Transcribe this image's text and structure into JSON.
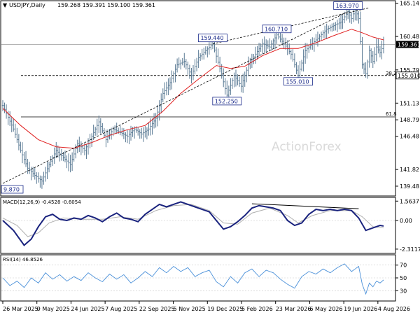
{
  "header": {
    "symbol_label": "USDJPY,Daily",
    "ohlc_text": "159.268 159.391 159.100 159.361"
  },
  "watermark": "ActionForex",
  "colors": {
    "price_bars": "#5a7a94",
    "moving_average": "#e02020",
    "trendline": "#000000",
    "macd_line": "#1a237e",
    "signal_line": "#b0b0b0",
    "rsi_line": "#4a90d9",
    "label_box": "#1a2a8a",
    "price_box": "#000000"
  },
  "chart_data": [
    {
      "type": "candlestick",
      "panel": "main",
      "title": "USDJPY,Daily",
      "ylim": [
        138.2,
        165.4
      ],
      "x_ticks": [
        "26 Mar 2025",
        "9 May 2025",
        "24 Jun 2025",
        "7 Aug 2025",
        "22 Sep 2025",
        "5 Nov 2025",
        "19 Dec 2025",
        "5 Feb 2026",
        "23 Mar 2026",
        "6 May 2026",
        "19 Jun 2026",
        "4 Aug 2026"
      ],
      "y_ticks": [
        165.14,
        160.48,
        155.79,
        151.13,
        148.79,
        146.48,
        141.82,
        139.48
      ],
      "close_path": [
        {
          "x": 0,
          "y": 150.8
        },
        {
          "x": 6,
          "y": 147.5
        },
        {
          "x": 10,
          "y": 144.5
        },
        {
          "x": 14,
          "y": 142.0
        },
        {
          "x": 18,
          "y": 141.0
        },
        {
          "x": 22,
          "y": 140.2
        },
        {
          "x": 26,
          "y": 142.5
        },
        {
          "x": 30,
          "y": 144.5
        },
        {
          "x": 34,
          "y": 143.5
        },
        {
          "x": 38,
          "y": 142.5
        },
        {
          "x": 42,
          "y": 145.5
        },
        {
          "x": 46,
          "y": 144.5
        },
        {
          "x": 50,
          "y": 146.5
        },
        {
          "x": 54,
          "y": 148.5
        },
        {
          "x": 58,
          "y": 146.0
        },
        {
          "x": 62,
          "y": 147.5
        },
        {
          "x": 66,
          "y": 147.0
        },
        {
          "x": 70,
          "y": 146.5
        },
        {
          "x": 74,
          "y": 147.5
        },
        {
          "x": 78,
          "y": 146.8
        },
        {
          "x": 82,
          "y": 147.5
        },
        {
          "x": 86,
          "y": 149.0
        },
        {
          "x": 90,
          "y": 152.5
        },
        {
          "x": 94,
          "y": 154.0
        },
        {
          "x": 98,
          "y": 156.5
        },
        {
          "x": 102,
          "y": 157.0
        },
        {
          "x": 106,
          "y": 155.0
        },
        {
          "x": 110,
          "y": 157.5
        },
        {
          "x": 114,
          "y": 158.5
        },
        {
          "x": 118,
          "y": 159.44
        },
        {
          "x": 122,
          "y": 156.0
        },
        {
          "x": 126,
          "y": 152.25
        },
        {
          "x": 130,
          "y": 155.0
        },
        {
          "x": 134,
          "y": 153.5
        },
        {
          "x": 138,
          "y": 156.5
        },
        {
          "x": 142,
          "y": 158.0
        },
        {
          "x": 146,
          "y": 159.5
        },
        {
          "x": 150,
          "y": 159.0
        },
        {
          "x": 154,
          "y": 160.71
        },
        {
          "x": 158,
          "y": 159.5
        },
        {
          "x": 162,
          "y": 158.0
        },
        {
          "x": 166,
          "y": 155.01
        },
        {
          "x": 170,
          "y": 158.5
        },
        {
          "x": 174,
          "y": 159.5
        },
        {
          "x": 178,
          "y": 160.5
        },
        {
          "x": 182,
          "y": 161.5
        },
        {
          "x": 186,
          "y": 162.0
        },
        {
          "x": 190,
          "y": 162.5
        },
        {
          "x": 194,
          "y": 163.97
        },
        {
          "x": 196,
          "y": 163.0
        },
        {
          "x": 198,
          "y": 164.3
        },
        {
          "x": 200,
          "y": 163.0
        },
        {
          "x": 202,
          "y": 156.5
        },
        {
          "x": 204,
          "y": 155.3
        },
        {
          "x": 206,
          "y": 158.5
        },
        {
          "x": 208,
          "y": 157.0
        },
        {
          "x": 210,
          "y": 159.0
        },
        {
          "x": 212,
          "y": 158.2
        },
        {
          "x": 214,
          "y": 159.361
        }
      ],
      "moving_average": [
        {
          "x": 0,
          "y": 150.4
        },
        {
          "x": 10,
          "y": 148.0
        },
        {
          "x": 20,
          "y": 146.0
        },
        {
          "x": 30,
          "y": 145.0
        },
        {
          "x": 40,
          "y": 144.8
        },
        {
          "x": 50,
          "y": 145.6
        },
        {
          "x": 60,
          "y": 146.6
        },
        {
          "x": 70,
          "y": 147.4
        },
        {
          "x": 80,
          "y": 148.0
        },
        {
          "x": 90,
          "y": 150.0
        },
        {
          "x": 100,
          "y": 152.5
        },
        {
          "x": 110,
          "y": 154.5
        },
        {
          "x": 120,
          "y": 156.4
        },
        {
          "x": 128,
          "y": 156.0
        },
        {
          "x": 136,
          "y": 156.3
        },
        {
          "x": 146,
          "y": 157.8
        },
        {
          "x": 156,
          "y": 158.8
        },
        {
          "x": 166,
          "y": 158.8
        },
        {
          "x": 176,
          "y": 159.6
        },
        {
          "x": 186,
          "y": 160.6
        },
        {
          "x": 196,
          "y": 161.5
        },
        {
          "x": 202,
          "y": 161.0
        },
        {
          "x": 208,
          "y": 160.4
        },
        {
          "x": 214,
          "y": 160.0
        }
      ],
      "horizontal_levels": [
        {
          "value": 159.361,
          "label": "159.361",
          "style": "current"
        },
        {
          "value": 155.01,
          "label": "155.010",
          "style": "dashed"
        },
        {
          "value": 149.2,
          "label": "61.8",
          "style": "solid"
        }
      ],
      "fib_level_label": "38.2",
      "trendlines": [
        {
          "x1": 0,
          "y1": 139.87,
          "x2": 194,
          "y2": 163.97
        },
        {
          "x1": 118,
          "y1": 159.44,
          "x2": 206,
          "y2": 164.5
        }
      ],
      "annotations": [
        {
          "text": "159.440",
          "x": 118,
          "y": 159.44
        },
        {
          "text": "152.250",
          "x": 126,
          "y": 152.25
        },
        {
          "text": "160.710",
          "x": 154,
          "y": 160.71
        },
        {
          "text": "155.010",
          "x": 166,
          "y": 155.01
        },
        {
          "text": "163.970",
          "x": 194,
          "y": 163.97
        },
        {
          "text": "9.870",
          "x": 0,
          "y": 139.87
        }
      ],
      "current_price": 159.361
    },
    {
      "type": "line",
      "panel": "macd",
      "title": "MACD(12,26,9) -0.4528 -0.6054",
      "ylim": [
        -2.6,
        1.75
      ],
      "y_ticks": [
        1.5637,
        0.0,
        -2.3117
      ],
      "y_tick_labels": [
        "1.5637",
        "0.00",
        "-2.3117"
      ],
      "series": [
        {
          "name": "MACD",
          "points": [
            {
              "x": 0,
              "y": 0.0
            },
            {
              "x": 6,
              "y": -0.8
            },
            {
              "x": 12,
              "y": -2.0
            },
            {
              "x": 16,
              "y": -1.5
            },
            {
              "x": 20,
              "y": -0.5
            },
            {
              "x": 24,
              "y": 0.3
            },
            {
              "x": 28,
              "y": 0.5
            },
            {
              "x": 32,
              "y": 0.1
            },
            {
              "x": 36,
              "y": 0.0
            },
            {
              "x": 40,
              "y": 0.2
            },
            {
              "x": 44,
              "y": 0.1
            },
            {
              "x": 48,
              "y": 0.4
            },
            {
              "x": 52,
              "y": 0.2
            },
            {
              "x": 56,
              "y": -0.1
            },
            {
              "x": 60,
              "y": 0.3
            },
            {
              "x": 64,
              "y": 0.6
            },
            {
              "x": 68,
              "y": 0.2
            },
            {
              "x": 72,
              "y": 0.1
            },
            {
              "x": 76,
              "y": -0.1
            },
            {
              "x": 80,
              "y": 0.5
            },
            {
              "x": 84,
              "y": 0.9
            },
            {
              "x": 88,
              "y": 1.3
            },
            {
              "x": 92,
              "y": 1.1
            },
            {
              "x": 96,
              "y": 1.3
            },
            {
              "x": 100,
              "y": 1.5
            },
            {
              "x": 104,
              "y": 1.3
            },
            {
              "x": 108,
              "y": 1.1
            },
            {
              "x": 112,
              "y": 0.9
            },
            {
              "x": 116,
              "y": 0.7
            },
            {
              "x": 120,
              "y": 0.0
            },
            {
              "x": 124,
              "y": -0.7
            },
            {
              "x": 128,
              "y": -0.5
            },
            {
              "x": 132,
              "y": -0.1
            },
            {
              "x": 136,
              "y": 0.4
            },
            {
              "x": 140,
              "y": 1.0
            },
            {
              "x": 144,
              "y": 1.2
            },
            {
              "x": 148,
              "y": 1.1
            },
            {
              "x": 152,
              "y": 1.0
            },
            {
              "x": 156,
              "y": 0.8
            },
            {
              "x": 160,
              "y": 0.0
            },
            {
              "x": 164,
              "y": -0.4
            },
            {
              "x": 168,
              "y": -0.2
            },
            {
              "x": 172,
              "y": 0.5
            },
            {
              "x": 176,
              "y": 0.9
            },
            {
              "x": 180,
              "y": 0.8
            },
            {
              "x": 184,
              "y": 0.9
            },
            {
              "x": 188,
              "y": 0.8
            },
            {
              "x": 192,
              "y": 0.9
            },
            {
              "x": 196,
              "y": 0.8
            },
            {
              "x": 200,
              "y": 0.2
            },
            {
              "x": 204,
              "y": -0.8
            },
            {
              "x": 208,
              "y": -0.6
            },
            {
              "x": 212,
              "y": -0.4
            },
            {
              "x": 214,
              "y": -0.45
            }
          ]
        },
        {
          "name": "Signal",
          "points": [
            {
              "x": 0,
              "y": 0.2
            },
            {
              "x": 8,
              "y": -0.4
            },
            {
              "x": 14,
              "y": -1.3
            },
            {
              "x": 20,
              "y": -1.0
            },
            {
              "x": 26,
              "y": -0.2
            },
            {
              "x": 34,
              "y": 0.2
            },
            {
              "x": 44,
              "y": 0.1
            },
            {
              "x": 56,
              "y": 0.1
            },
            {
              "x": 66,
              "y": 0.3
            },
            {
              "x": 76,
              "y": 0.1
            },
            {
              "x": 86,
              "y": 0.8
            },
            {
              "x": 96,
              "y": 1.2
            },
            {
              "x": 106,
              "y": 1.3
            },
            {
              "x": 116,
              "y": 0.8
            },
            {
              "x": 124,
              "y": -0.2
            },
            {
              "x": 132,
              "y": -0.3
            },
            {
              "x": 140,
              "y": 0.6
            },
            {
              "x": 150,
              "y": 1.0
            },
            {
              "x": 160,
              "y": 0.4
            },
            {
              "x": 166,
              "y": -0.2
            },
            {
              "x": 174,
              "y": 0.4
            },
            {
              "x": 184,
              "y": 0.8
            },
            {
              "x": 196,
              "y": 0.8
            },
            {
              "x": 202,
              "y": 0.3
            },
            {
              "x": 208,
              "y": -0.5
            },
            {
              "x": 214,
              "y": -0.6
            }
          ]
        }
      ],
      "divergence_line": {
        "x1": 140,
        "y1": 1.35,
        "x2": 200,
        "y2": 0.95
      }
    },
    {
      "type": "line",
      "panel": "rsi",
      "title": "RSI(14) 46.8526",
      "ylim": [
        15,
        85
      ],
      "y_ticks": [
        70,
        50,
        30
      ],
      "series": [
        {
          "name": "RSI",
          "points": [
            {
              "x": 0,
              "y": 50
            },
            {
              "x": 4,
              "y": 38
            },
            {
              "x": 8,
              "y": 45
            },
            {
              "x": 12,
              "y": 35
            },
            {
              "x": 16,
              "y": 50
            },
            {
              "x": 20,
              "y": 42
            },
            {
              "x": 24,
              "y": 58
            },
            {
              "x": 28,
              "y": 48
            },
            {
              "x": 32,
              "y": 55
            },
            {
              "x": 36,
              "y": 45
            },
            {
              "x": 40,
              "y": 52
            },
            {
              "x": 44,
              "y": 46
            },
            {
              "x": 48,
              "y": 58
            },
            {
              "x": 52,
              "y": 50
            },
            {
              "x": 56,
              "y": 44
            },
            {
              "x": 60,
              "y": 56
            },
            {
              "x": 64,
              "y": 48
            },
            {
              "x": 68,
              "y": 55
            },
            {
              "x": 72,
              "y": 42
            },
            {
              "x": 76,
              "y": 50
            },
            {
              "x": 80,
              "y": 60
            },
            {
              "x": 84,
              "y": 52
            },
            {
              "x": 88,
              "y": 66
            },
            {
              "x": 92,
              "y": 58
            },
            {
              "x": 96,
              "y": 68
            },
            {
              "x": 100,
              "y": 60
            },
            {
              "x": 104,
              "y": 66
            },
            {
              "x": 108,
              "y": 52
            },
            {
              "x": 112,
              "y": 58
            },
            {
              "x": 116,
              "y": 62
            },
            {
              "x": 120,
              "y": 44
            },
            {
              "x": 124,
              "y": 36
            },
            {
              "x": 128,
              "y": 52
            },
            {
              "x": 132,
              "y": 42
            },
            {
              "x": 136,
              "y": 58
            },
            {
              "x": 140,
              "y": 64
            },
            {
              "x": 144,
              "y": 52
            },
            {
              "x": 148,
              "y": 62
            },
            {
              "x": 152,
              "y": 58
            },
            {
              "x": 156,
              "y": 48
            },
            {
              "x": 160,
              "y": 40
            },
            {
              "x": 164,
              "y": 34
            },
            {
              "x": 168,
              "y": 52
            },
            {
              "x": 172,
              "y": 60
            },
            {
              "x": 176,
              "y": 56
            },
            {
              "x": 180,
              "y": 64
            },
            {
              "x": 184,
              "y": 58
            },
            {
              "x": 188,
              "y": 66
            },
            {
              "x": 192,
              "y": 72
            },
            {
              "x": 196,
              "y": 60
            },
            {
              "x": 200,
              "y": 68
            },
            {
              "x": 202,
              "y": 40
            },
            {
              "x": 204,
              "y": 25
            },
            {
              "x": 206,
              "y": 42
            },
            {
              "x": 208,
              "y": 36
            },
            {
              "x": 210,
              "y": 45
            },
            {
              "x": 212,
              "y": 42
            },
            {
              "x": 214,
              "y": 46.85
            }
          ]
        }
      ]
    }
  ]
}
